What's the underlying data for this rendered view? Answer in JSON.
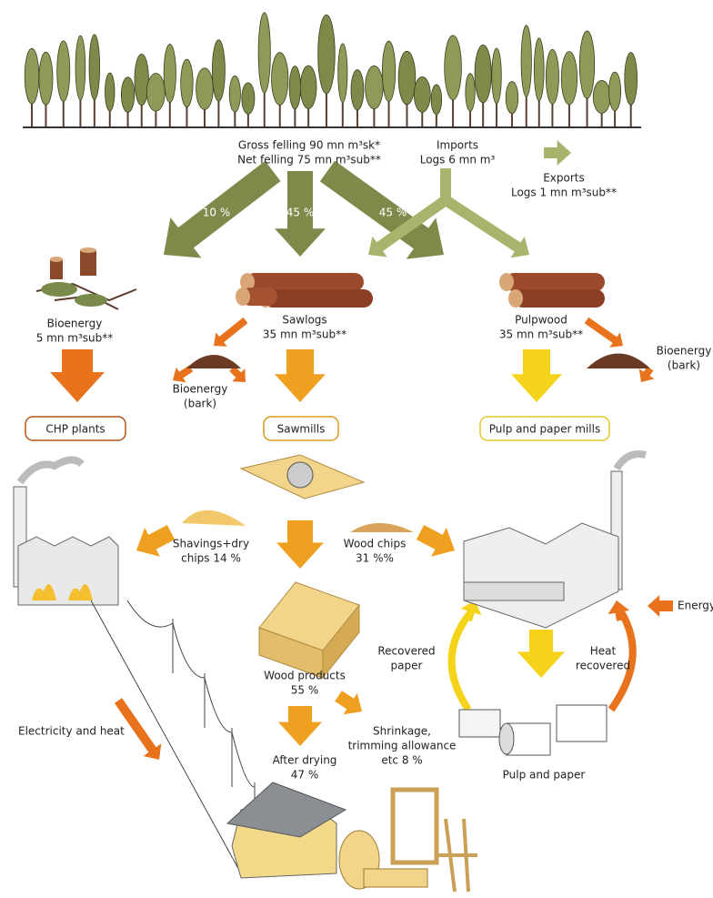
{
  "felling": {
    "gross": "Gross felling 90 mn m³sk*",
    "net": "Net felling 75 mn m³sub**",
    "shares": [
      "10 %",
      "45 %",
      "45 %"
    ]
  },
  "imports": {
    "title": "Imports",
    "amount": "Logs 6 mn m³"
  },
  "exports": {
    "title": "Exports",
    "amount": "Logs 1 mn m³sub**"
  },
  "bioenergy": {
    "title": "Bioenergy",
    "amount": "5 mn m³sub**"
  },
  "sawlogs": {
    "title": "Sawlogs",
    "amount": "35 mn m³sub**"
  },
  "pulpwood": {
    "title": "Pulpwood",
    "amount": "35 mn m³sub**"
  },
  "bark_left": [
    "Bioenergy",
    "(bark)"
  ],
  "bark_right": [
    "Bioenergy",
    "(bark)"
  ],
  "facilities": [
    "CHP plants",
    "Sawmills",
    "Pulp and paper mills"
  ],
  "shavings": [
    "Shavings+dry",
    "chips 14 %"
  ],
  "wood_chips": [
    "Wood chips",
    "31 %%"
  ],
  "energy": "Energy",
  "recovered_paper": [
    "Recovered",
    "paper"
  ],
  "heat_recovered": [
    "Heat",
    "recovered"
  ],
  "wood_products": [
    "Wood products",
    "55 %"
  ],
  "after_drying": [
    "After drying",
    "47 %"
  ],
  "shrinkage": [
    "Shrinkage,",
    "trimming allowance",
    "etc 8 %"
  ],
  "electricity": "Electricity and heat",
  "pulp_and_paper": "Pulp and paper"
}
